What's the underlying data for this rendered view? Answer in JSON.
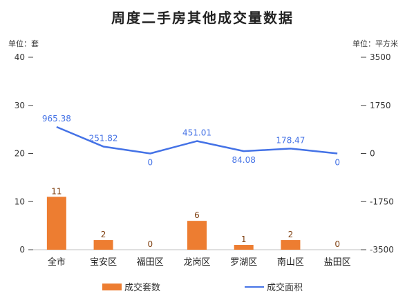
{
  "title": "周度二手房其他成交量数据",
  "units": {
    "left": "单位：套",
    "right": "单位：平方米"
  },
  "colors": {
    "bar": "#ED7D31",
    "line": "#4472E6",
    "axis": "#333333",
    "barLabel": "#7F3F0F"
  },
  "legend": {
    "bar": "成交套数",
    "line": "成交面积"
  },
  "chart_data": {
    "type": "bar",
    "title": "周度二手房其他成交量数据",
    "categories": [
      "全市",
      "宝安区",
      "福田区",
      "龙岗区",
      "罗湖区",
      "南山区",
      "盐田区"
    ],
    "series": [
      {
        "name": "成交套数",
        "type": "bar",
        "axis": "left",
        "values": [
          11,
          2,
          0,
          6,
          1,
          2,
          0
        ]
      },
      {
        "name": "成交面积",
        "type": "line",
        "axis": "right",
        "values": [
          965.38,
          251.82,
          0,
          451.01,
          84.08,
          178.47,
          0
        ]
      }
    ],
    "y_left": {
      "range": [
        0,
        40
      ],
      "ticks": [
        "0",
        "10",
        "20",
        "30",
        "40"
      ]
    },
    "y_right": {
      "range": [
        -3500,
        3500
      ],
      "ticks": [
        "-3500",
        "-1750",
        "0",
        "1750",
        "3500"
      ]
    },
    "grid": false,
    "legend_position": "bottom"
  }
}
